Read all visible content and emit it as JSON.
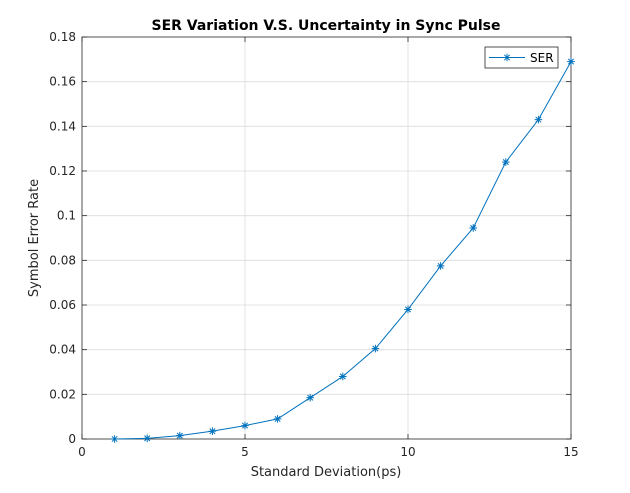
{
  "chart_data": {
    "type": "line",
    "title": "SER Variation V.S. Uncertainty in Sync Pulse",
    "xlabel": "Standard Deviation(ps)",
    "ylabel": "Symbol Error Rate",
    "xlim": [
      0,
      15
    ],
    "ylim": [
      0,
      0.18
    ],
    "x_ticks": [
      0,
      5,
      10,
      15
    ],
    "x_tick_labels": [
      "0",
      "5",
      "10",
      "15"
    ],
    "y_ticks": [
      0,
      0.02,
      0.04,
      0.06,
      0.08,
      0.1,
      0.12,
      0.14,
      0.16,
      0.18
    ],
    "y_tick_labels": [
      "0",
      "0.02",
      "0.04",
      "0.06",
      "0.08",
      "0.1",
      "0.12",
      "0.14",
      "0.16",
      "0.18"
    ],
    "grid": true,
    "legend_position": "top-right",
    "series": [
      {
        "name": "SER",
        "marker": "asterisk",
        "color": "#0072BD",
        "x": [
          1,
          2,
          3,
          4,
          5,
          6,
          7,
          8,
          9,
          10,
          11,
          12,
          13,
          14,
          15
        ],
        "y": [
          0.0,
          0.0003,
          0.0015,
          0.0035,
          0.006,
          0.009,
          0.0185,
          0.028,
          0.0405,
          0.058,
          0.0775,
          0.0945,
          0.124,
          0.143,
          0.169
        ]
      }
    ]
  }
}
